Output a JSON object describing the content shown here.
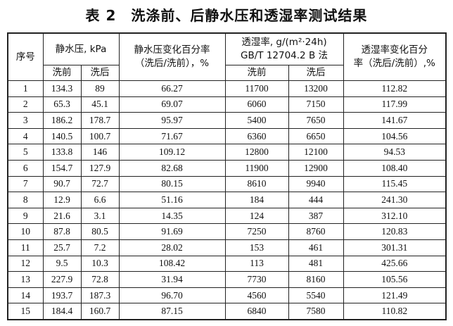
{
  "title": "表 2　洗涤前、后静水压和透湿率测试结果",
  "headers": {
    "index": "序号",
    "hydro": "静水压, kPa",
    "hydro_change_line1": "静水压变化百分率",
    "hydro_change_line2": "（洗后/洗前），%",
    "mvtr_line1": "透湿率, g/(m²·24h)",
    "mvtr_line2": "GB/T 12704.2 B 法",
    "mvtr_change_line1": "透湿率变化百分",
    "mvtr_change_line2": "率（洗后/洗前）,%",
    "before": "洗前",
    "after": "洗后"
  },
  "rows": [
    [
      "1",
      "134.3",
      "89",
      "66.27",
      "11700",
      "13200",
      "112.82"
    ],
    [
      "2",
      "65.3",
      "45.1",
      "69.07",
      "6060",
      "7150",
      "117.99"
    ],
    [
      "3",
      "186.2",
      "178.7",
      "95.97",
      "5400",
      "7650",
      "141.67"
    ],
    [
      "4",
      "140.5",
      "100.7",
      "71.67",
      "6360",
      "6650",
      "104.56"
    ],
    [
      "5",
      "133.8",
      "146",
      "109.12",
      "12800",
      "12100",
      "94.53"
    ],
    [
      "6",
      "154.7",
      "127.9",
      "82.68",
      "11900",
      "12900",
      "108.40"
    ],
    [
      "7",
      "90.7",
      "72.7",
      "80.15",
      "8610",
      "9940",
      "115.45"
    ],
    [
      "8",
      "12.9",
      "6.6",
      "51.16",
      "184",
      "444",
      "241.30"
    ],
    [
      "9",
      "21.6",
      "3.1",
      "14.35",
      "124",
      "387",
      "312.10"
    ],
    [
      "10",
      "87.8",
      "80.5",
      "91.69",
      "7250",
      "8760",
      "120.83"
    ],
    [
      "11",
      "25.7",
      "7.2",
      "28.02",
      "153",
      "461",
      "301.31"
    ],
    [
      "12",
      "9.5",
      "10.3",
      "108.42",
      "113",
      "481",
      "425.66"
    ],
    [
      "13",
      "227.9",
      "72.8",
      "31.94",
      "7730",
      "8160",
      "105.56"
    ],
    [
      "14",
      "193.7",
      "187.3",
      "96.70",
      "4560",
      "5540",
      "121.49"
    ],
    [
      "15",
      "184.4",
      "160.7",
      "87.15",
      "6840",
      "7580",
      "110.82"
    ]
  ]
}
